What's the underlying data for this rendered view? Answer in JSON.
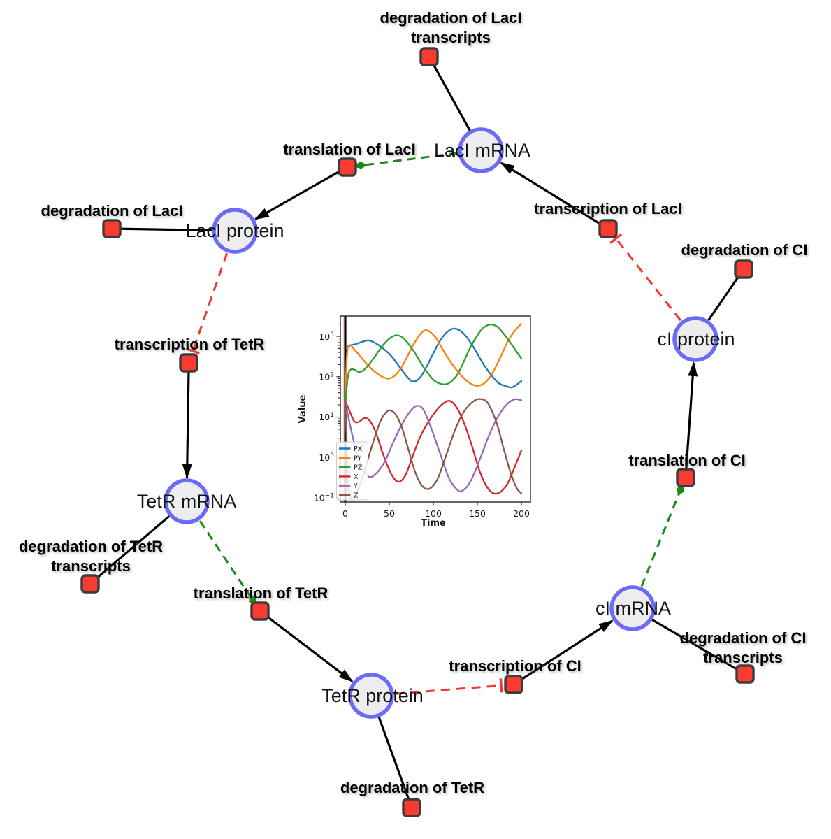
{
  "diagram": {
    "title": "repressilator reaction network",
    "colors": {
      "species_fill": "#ededef",
      "species_border": "#6b6bf7",
      "reaction_fill": "#fb3b31",
      "reaction_border": "#3c3c3c",
      "edge_reaction": "#000000",
      "edge_modifier": "#178a17",
      "edge_inhibition": "#f8352c",
      "label_text": "#000000"
    },
    "species": [
      {
        "id": "laci-mrna",
        "label": "LacI mRNA"
      },
      {
        "id": "laci-protein",
        "label": "LacI protein"
      },
      {
        "id": "tetr-mrna",
        "label": "TetR mRNA"
      },
      {
        "id": "tetr-protein",
        "label": "TetR protein"
      },
      {
        "id": "ci-mrna",
        "label": "cI mRNA"
      },
      {
        "id": "ci-protein",
        "label": "cI protein"
      }
    ],
    "reactions": [
      {
        "id": "degradation-of-laci-transcripts",
        "label": "degradation of LacI transcripts",
        "lines": [
          "degradation of LacI",
          "transcripts"
        ]
      },
      {
        "id": "translation-of-laci",
        "label": "translation of LacI",
        "lines": [
          "translation of LacI"
        ]
      },
      {
        "id": "degradation-of-laci",
        "label": "degradation of LacI",
        "lines": [
          "degradation of LacI"
        ]
      },
      {
        "id": "transcription-of-laci",
        "label": "transcription of LacI",
        "lines": [
          "transcription of LacI"
        ]
      },
      {
        "id": "degradation-of-ci",
        "label": "degradation of CI",
        "lines": [
          "degradation of CI"
        ]
      },
      {
        "id": "transcription-of-tetr",
        "label": "transcription of TetR",
        "lines": [
          "transcription of TetR"
        ]
      },
      {
        "id": "degradation-of-tetr-transcripts",
        "label": "degradation of TetR transcripts",
        "lines": [
          "degradation of TetR",
          "transcripts"
        ]
      },
      {
        "id": "translation-of-tetr",
        "label": "translation of TetR",
        "lines": [
          "translation of TetR"
        ]
      },
      {
        "id": "degradation-of-tetr",
        "label": "degradation of TetR",
        "lines": [
          "degradation of TetR"
        ]
      },
      {
        "id": "transcription-of-ci",
        "label": "transcription of CI",
        "lines": [
          "transcription of CI"
        ]
      },
      {
        "id": "degradation-of-ci-transcripts",
        "label": "degradation of CI transcripts",
        "lines": [
          "degradation of CI",
          "transcripts"
        ]
      },
      {
        "id": "translation-of-ci",
        "label": "translation of CI",
        "lines": [
          "translation of CI"
        ]
      }
    ],
    "interactions": [
      {
        "source": "transcription-of-laci",
        "target": "laci-mrna",
        "type": "production"
      },
      {
        "source": "transcription-of-tetr",
        "target": "tetr-mrna",
        "type": "production"
      },
      {
        "source": "transcription-of-ci",
        "target": "ci-mrna",
        "type": "production"
      },
      {
        "source": "translation-of-laci",
        "target": "laci-protein",
        "type": "production"
      },
      {
        "source": "translation-of-tetr",
        "target": "tetr-protein",
        "type": "production"
      },
      {
        "source": "translation-of-ci",
        "target": "ci-protein",
        "type": "production"
      },
      {
        "source": "laci-mrna",
        "target": "degradation-of-laci-transcripts",
        "type": "consumption"
      },
      {
        "source": "laci-protein",
        "target": "degradation-of-laci",
        "type": "consumption"
      },
      {
        "source": "tetr-mrna",
        "target": "degradation-of-tetr-transcripts",
        "type": "consumption"
      },
      {
        "source": "tetr-protein",
        "target": "degradation-of-tetr",
        "type": "consumption"
      },
      {
        "source": "ci-mrna",
        "target": "degradation-of-ci-transcripts",
        "type": "consumption"
      },
      {
        "source": "ci-protein",
        "target": "degradation-of-ci",
        "type": "consumption"
      },
      {
        "source": "laci-mrna",
        "target": "translation-of-laci",
        "type": "modifier"
      },
      {
        "source": "tetr-mrna",
        "target": "translation-of-tetr",
        "type": "modifier"
      },
      {
        "source": "ci-mrna",
        "target": "translation-of-ci",
        "type": "modifier"
      },
      {
        "source": "laci-protein",
        "target": "transcription-of-tetr",
        "type": "inhibition"
      },
      {
        "source": "tetr-protein",
        "target": "transcription-of-ci",
        "type": "inhibition"
      },
      {
        "source": "ci-protein",
        "target": "transcription-of-laci",
        "type": "inhibition"
      }
    ]
  },
  "chart_data": {
    "type": "line",
    "title": "",
    "xlabel": "Time",
    "ylabel": "Value",
    "x_scale": "linear",
    "y_scale": "log",
    "xlim": [
      -6,
      210
    ],
    "ylim": [
      0.079,
      3160
    ],
    "xticks": [
      "0",
      "50",
      "100",
      "150",
      "200"
    ],
    "yticks": [
      {
        "m": "10",
        "e": "3"
      },
      {
        "m": "10",
        "e": "2"
      },
      {
        "m": "10",
        "e": "1"
      },
      {
        "m": "10",
        "e": "0"
      },
      {
        "m": "10",
        "e": "−1"
      }
    ],
    "grid": false,
    "legend": {
      "position": "lower left"
    },
    "annotations": [
      {
        "type": "vline",
        "x": 0,
        "color": "#000000"
      },
      {
        "type": "vline",
        "x": 0,
        "color": "#d62728",
        "opacity": 0.22
      }
    ],
    "series": [
      {
        "name": "PX",
        "color": "#1f77b4",
        "points": [
          [
            0,
            20
          ],
          [
            2,
            400
          ],
          [
            5,
            580
          ],
          [
            12,
            640
          ],
          [
            20,
            740
          ],
          [
            26,
            790
          ],
          [
            33,
            700
          ],
          [
            42,
            520
          ],
          [
            52,
            330
          ],
          [
            62,
            170
          ],
          [
            72,
            90
          ],
          [
            78,
            76
          ],
          [
            85,
            95
          ],
          [
            92,
            170
          ],
          [
            100,
            380
          ],
          [
            108,
            800
          ],
          [
            116,
            1300
          ],
          [
            123,
            1550
          ],
          [
            130,
            1400
          ],
          [
            138,
            950
          ],
          [
            147,
            480
          ],
          [
            156,
            220
          ],
          [
            165,
            115
          ],
          [
            174,
            70
          ],
          [
            183,
            58
          ],
          [
            190,
            55
          ],
          [
            200,
            78
          ]
        ]
      },
      {
        "name": "PY",
        "color": "#ff7f0e",
        "points": [
          [
            0,
            20
          ],
          [
            2,
            350
          ],
          [
            5,
            600
          ],
          [
            10,
            480
          ],
          [
            18,
            300
          ],
          [
            26,
            190
          ],
          [
            34,
            130
          ],
          [
            42,
            100
          ],
          [
            49,
            90
          ],
          [
            56,
            105
          ],
          [
            63,
            160
          ],
          [
            70,
            300
          ],
          [
            77,
            600
          ],
          [
            84,
            1050
          ],
          [
            90,
            1400
          ],
          [
            96,
            1300
          ],
          [
            103,
            900
          ],
          [
            110,
            500
          ],
          [
            118,
            260
          ],
          [
            126,
            150
          ],
          [
            134,
            95
          ],
          [
            142,
            68
          ],
          [
            149,
            60
          ],
          [
            156,
            65
          ],
          [
            163,
            90
          ],
          [
            170,
            160
          ],
          [
            177,
            330
          ],
          [
            184,
            700
          ],
          [
            191,
            1250
          ],
          [
            200,
            2050
          ]
        ]
      },
      {
        "name": "PZ",
        "color": "#2ca02c",
        "points": [
          [
            0,
            20
          ],
          [
            3,
            100
          ],
          [
            6,
            148
          ],
          [
            10,
            150
          ],
          [
            15,
            132
          ],
          [
            20,
            140
          ],
          [
            26,
            190
          ],
          [
            33,
            300
          ],
          [
            40,
            500
          ],
          [
            48,
            800
          ],
          [
            55,
            1020
          ],
          [
            60,
            1050
          ],
          [
            66,
            900
          ],
          [
            73,
            600
          ],
          [
            80,
            360
          ],
          [
            87,
            200
          ],
          [
            94,
            120
          ],
          [
            101,
            80
          ],
          [
            108,
            67
          ],
          [
            114,
            65
          ],
          [
            120,
            75
          ],
          [
            127,
            110
          ],
          [
            134,
            220
          ],
          [
            141,
            480
          ],
          [
            148,
            900
          ],
          [
            155,
            1500
          ],
          [
            162,
            1900
          ],
          [
            167,
            1950
          ],
          [
            173,
            1700
          ],
          [
            180,
            1150
          ],
          [
            187,
            720
          ],
          [
            194,
            430
          ],
          [
            200,
            280
          ]
        ]
      },
      {
        "name": "X",
        "color": "#d62728",
        "points": [
          [
            0,
            25
          ],
          [
            5,
            14
          ],
          [
            10,
            8
          ],
          [
            15,
            7.5
          ],
          [
            22,
            9.5
          ],
          [
            28,
            8
          ],
          [
            35,
            4
          ],
          [
            43,
            1.2
          ],
          [
            52,
            0.4
          ],
          [
            60,
            0.25
          ],
          [
            68,
            0.35
          ],
          [
            76,
            1.0
          ],
          [
            85,
            3.2
          ],
          [
            95,
            8
          ],
          [
            105,
            16
          ],
          [
            113,
            23
          ],
          [
            119,
            25
          ],
          [
            126,
            18
          ],
          [
            134,
            8
          ],
          [
            143,
            2.2
          ],
          [
            152,
            0.5
          ],
          [
            160,
            0.2
          ],
          [
            168,
            0.13
          ],
          [
            176,
            0.14
          ],
          [
            184,
            0.22
          ],
          [
            192,
            0.55
          ],
          [
            200,
            1.5
          ]
        ]
      },
      {
        "name": "Y",
        "color": "#9467bd",
        "points": [
          [
            0,
            25
          ],
          [
            5,
            7
          ],
          [
            12,
            1.6
          ],
          [
            20,
            0.55
          ],
          [
            27,
            0.33
          ],
          [
            35,
            0.4
          ],
          [
            45,
            0.8
          ],
          [
            55,
            2.5
          ],
          [
            65,
            7
          ],
          [
            75,
            15
          ],
          [
            82,
            19
          ],
          [
            89,
            15
          ],
          [
            98,
            5
          ],
          [
            108,
            1.2
          ],
          [
            118,
            0.3
          ],
          [
            127,
            0.16
          ],
          [
            133,
            0.15
          ],
          [
            142,
            0.25
          ],
          [
            152,
            0.8
          ],
          [
            162,
            3
          ],
          [
            172,
            9
          ],
          [
            182,
            19
          ],
          [
            192,
            27.5
          ],
          [
            200,
            26
          ]
        ]
      },
      {
        "name": "Z",
        "color": "#8c564b",
        "points": [
          [
            0,
            25
          ],
          [
            2,
            1.5
          ],
          [
            4,
            0.15
          ],
          [
            7,
            0.1
          ],
          [
            12,
            0.12
          ],
          [
            18,
            0.25
          ],
          [
            25,
            0.8
          ],
          [
            32,
            2.5
          ],
          [
            40,
            8
          ],
          [
            47,
            13.5
          ],
          [
            52,
            14.5
          ],
          [
            58,
            11
          ],
          [
            65,
            5
          ],
          [
            72,
            1.5
          ],
          [
            80,
            0.4
          ],
          [
            88,
            0.19
          ],
          [
            96,
            0.17
          ],
          [
            105,
            0.3
          ],
          [
            115,
            1.2
          ],
          [
            125,
            5
          ],
          [
            135,
            14
          ],
          [
            145,
            24
          ],
          [
            153,
            28
          ],
          [
            162,
            22
          ],
          [
            172,
            7
          ],
          [
            180,
            1.6
          ],
          [
            188,
            0.4
          ],
          [
            195,
            0.17
          ],
          [
            200,
            0.13
          ]
        ]
      }
    ]
  }
}
